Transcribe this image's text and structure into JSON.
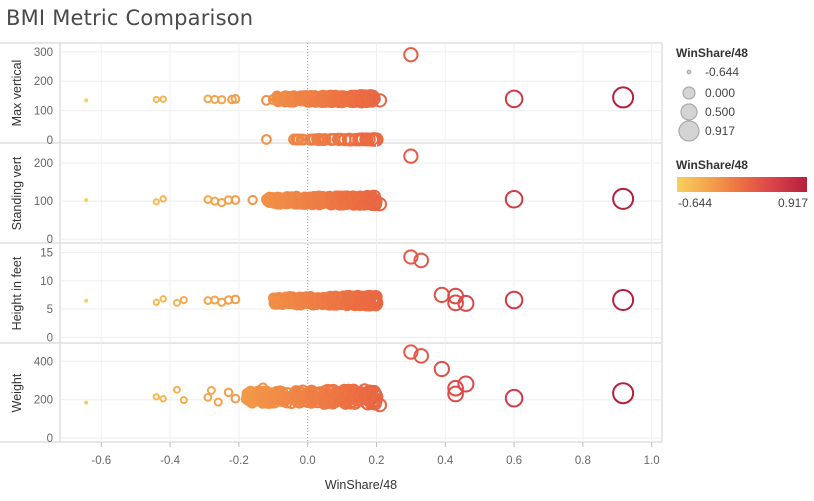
{
  "title": "BMI Metric Comparison",
  "chart_data": {
    "type": "scatter",
    "title": "BMI Metric Comparison",
    "xlabel": "WinShare/48",
    "x_ticks": [
      "-0.6",
      "-0.4",
      "-0.2",
      "0.0",
      "0.2",
      "0.4",
      "0.6",
      "0.8",
      "1.0"
    ],
    "xlim": [
      -0.72,
      1.03
    ],
    "grid": true,
    "legend_position": "right",
    "size_legend": {
      "title": "WinShare/48",
      "entries": [
        "-0.644",
        "0.000",
        "0.500",
        "0.917"
      ]
    },
    "color_legend": {
      "title": "WinShare/48",
      "min_label": "-0.644",
      "max_label": "0.917",
      "min_value": -0.644,
      "max_value": 0.917,
      "colors": [
        "#f9cf5e",
        "#f4a24a",
        "#ec6e42",
        "#d8404a",
        "#b51f3b"
      ]
    },
    "panels": [
      {
        "ylabel": "Max vertical",
        "ylim": [
          -10,
          330
        ],
        "y_ticks": [
          "0",
          "100",
          "200",
          "300"
        ],
        "points": [
          {
            "x": -0.644,
            "y": 135
          },
          {
            "x": -0.44,
            "y": 138
          },
          {
            "x": -0.42,
            "y": 139
          },
          {
            "x": -0.29,
            "y": 140
          },
          {
            "x": -0.27,
            "y": 138
          },
          {
            "x": -0.25,
            "y": 137
          },
          {
            "x": -0.22,
            "y": 138
          },
          {
            "x": -0.21,
            "y": 140
          },
          {
            "x": -0.12,
            "y": 135
          },
          {
            "x": -0.1,
            "y": 138
          },
          {
            "x": -0.12,
            "y": 2
          },
          {
            "x": -0.04,
            "y": 2
          },
          {
            "x": 0.07,
            "y": 2
          },
          {
            "x": 0.12,
            "y": 2
          },
          {
            "x": 0.17,
            "y": 2
          },
          {
            "x": 0.2,
            "y": 2
          },
          {
            "x": 0.3,
            "y": 290
          },
          {
            "x": 0.6,
            "y": 140
          },
          {
            "x": 0.917,
            "y": 145
          },
          {
            "x": 0.21,
            "y": 135
          }
        ],
        "cluster": {
          "x_range": [
            -0.09,
            0.2
          ],
          "y_center": 140,
          "y_spread": 10
        },
        "zero_cluster": {
          "x_range": [
            -0.05,
            0.2
          ],
          "y_center": 2,
          "y_spread": 1
        }
      },
      {
        "ylabel": "Standing vert",
        "ylim": [
          -10,
          250
        ],
        "y_ticks": [
          "0",
          "100",
          "200"
        ],
        "points": [
          {
            "x": -0.644,
            "y": 103
          },
          {
            "x": -0.44,
            "y": 98
          },
          {
            "x": -0.42,
            "y": 106
          },
          {
            "x": -0.29,
            "y": 104
          },
          {
            "x": -0.27,
            "y": 100
          },
          {
            "x": -0.25,
            "y": 96
          },
          {
            "x": -0.23,
            "y": 103
          },
          {
            "x": -0.21,
            "y": 103
          },
          {
            "x": -0.16,
            "y": 103
          },
          {
            "x": -0.12,
            "y": 105
          },
          {
            "x": 0.3,
            "y": 218
          },
          {
            "x": 0.6,
            "y": 105
          },
          {
            "x": 0.917,
            "y": 106
          },
          {
            "x": 0.21,
            "y": 92
          }
        ],
        "cluster": {
          "x_range": [
            -0.12,
            0.2
          ],
          "y_center": 102,
          "y_spread": 10
        }
      },
      {
        "ylabel": "Height in feet",
        "ylim": [
          -1,
          16.5
        ],
        "y_ticks": [
          "0",
          "5",
          "10",
          "15"
        ],
        "points": [
          {
            "x": -0.644,
            "y": 6.5
          },
          {
            "x": -0.44,
            "y": 6.2
          },
          {
            "x": -0.42,
            "y": 6.8
          },
          {
            "x": -0.38,
            "y": 6.1
          },
          {
            "x": -0.36,
            "y": 6.6
          },
          {
            "x": -0.29,
            "y": 6.5
          },
          {
            "x": -0.27,
            "y": 6.6
          },
          {
            "x": -0.25,
            "y": 6.2
          },
          {
            "x": -0.23,
            "y": 6.6
          },
          {
            "x": -0.21,
            "y": 6.7
          },
          {
            "x": 0.3,
            "y": 14.2
          },
          {
            "x": 0.33,
            "y": 13.6
          },
          {
            "x": 0.39,
            "y": 7.5
          },
          {
            "x": 0.43,
            "y": 7.3
          },
          {
            "x": 0.43,
            "y": 6.1
          },
          {
            "x": 0.46,
            "y": 6.0
          },
          {
            "x": 0.6,
            "y": 6.6
          },
          {
            "x": 0.917,
            "y": 6.6
          }
        ],
        "cluster": {
          "x_range": [
            -0.1,
            0.2
          ],
          "y_center": 6.5,
          "y_spread": 0.7
        }
      },
      {
        "ylabel": "Weight",
        "ylim": [
          -20,
          490
        ],
        "y_ticks": [
          "0",
          "200",
          "400"
        ],
        "points": [
          {
            "x": -0.644,
            "y": 185
          },
          {
            "x": -0.44,
            "y": 215
          },
          {
            "x": -0.42,
            "y": 205
          },
          {
            "x": -0.38,
            "y": 252
          },
          {
            "x": -0.36,
            "y": 198
          },
          {
            "x": -0.29,
            "y": 212
          },
          {
            "x": -0.28,
            "y": 248
          },
          {
            "x": -0.26,
            "y": 188
          },
          {
            "x": -0.23,
            "y": 238
          },
          {
            "x": -0.21,
            "y": 206
          },
          {
            "x": -0.13,
            "y": 262
          },
          {
            "x": 0.3,
            "y": 448
          },
          {
            "x": 0.33,
            "y": 428
          },
          {
            "x": 0.39,
            "y": 360
          },
          {
            "x": 0.43,
            "y": 260
          },
          {
            "x": 0.43,
            "y": 230
          },
          {
            "x": 0.46,
            "y": 282
          },
          {
            "x": 0.6,
            "y": 208
          },
          {
            "x": 0.917,
            "y": 234
          },
          {
            "x": 0.21,
            "y": 172
          }
        ],
        "cluster": {
          "x_range": [
            -0.18,
            0.2
          ],
          "y_center": 215,
          "y_spread": 35
        }
      }
    ]
  }
}
